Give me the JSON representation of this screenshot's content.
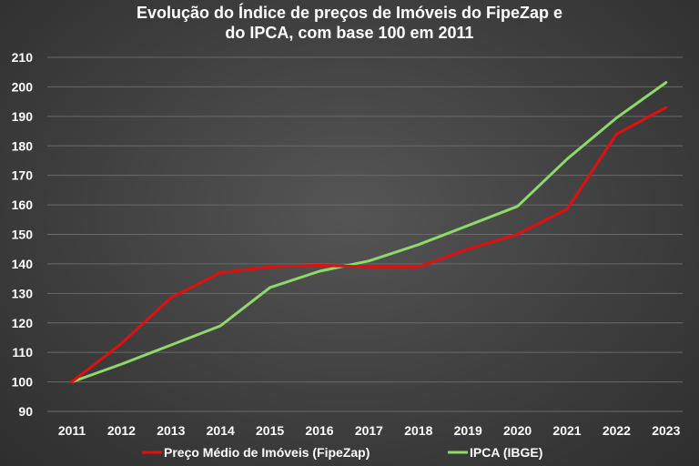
{
  "chart_data": {
    "type": "line",
    "title_line1": "Evolução do Índice de preços de Imóveis do FipeZap e",
    "title_line2": "do IPCA, com base 100 em 2011",
    "xlabel": "",
    "ylabel": "",
    "x": [
      "2011",
      "2012",
      "2013",
      "2014",
      "2015",
      "2016",
      "2017",
      "2018",
      "2019",
      "2020",
      "2021",
      "2022",
      "2023"
    ],
    "ylim": [
      90,
      210
    ],
    "yticks": [
      "90",
      "100",
      "110",
      "120",
      "130",
      "140",
      "150",
      "160",
      "170",
      "180",
      "190",
      "200",
      "210"
    ],
    "grid": true,
    "legend_position": "bottom",
    "series": [
      {
        "name": "Preço Médio de Imóveis (FipeZap)",
        "color": "#e30f0f",
        "values": [
          100,
          113,
          128.5,
          137,
          139,
          139.5,
          139,
          139,
          145,
          150,
          158.5,
          184,
          193
        ]
      },
      {
        "name": "IPCA (IBGE)",
        "color": "#8fd86b",
        "values": [
          100,
          106,
          112.5,
          119,
          132,
          137.5,
          141,
          146.5,
          153,
          159.5,
          175.5,
          189.5,
          201.5
        ]
      }
    ]
  }
}
